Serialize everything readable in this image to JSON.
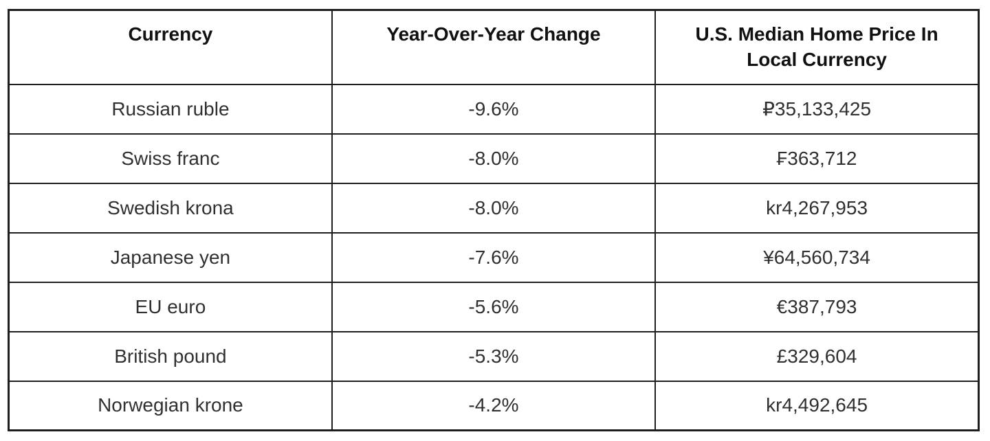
{
  "chart_data": {
    "type": "table",
    "columns": [
      "Currency",
      "Year-Over-Year Change",
      "U.S. Median Home Price In Local Currency"
    ],
    "rows": [
      [
        "Russian ruble",
        "-9.6%",
        "₽35,133,425"
      ],
      [
        "Swiss franc",
        "-8.0%",
        "₣363,712"
      ],
      [
        "Swedish krona",
        "-8.0%",
        "kr4,267,953"
      ],
      [
        "Japanese yen",
        "-7.6%",
        "¥64,560,734"
      ],
      [
        "EU euro",
        "-5.6%",
        "€387,793"
      ],
      [
        "British pound",
        "-5.3%",
        "£329,604"
      ],
      [
        "Norwegian krone",
        "-4.2%",
        "kr4,492,645"
      ]
    ],
    "yoy_change_pct": [
      -9.6,
      -8.0,
      -8.0,
      -7.6,
      -5.6,
      -5.3,
      -4.2
    ],
    "price_in_local_currency": [
      35133425,
      363712,
      4267953,
      64560734,
      387793,
      329604,
      4492645
    ],
    "currency_symbols": [
      "₽",
      "₣",
      "kr",
      "¥",
      "€",
      "£",
      "kr"
    ],
    "layout": {
      "grid": "full-borders",
      "header_alignment": "top-center",
      "cell_alignment": "middle-center"
    },
    "colors": {
      "background": "#ffffff",
      "border": "#1e1e1e",
      "header_text": "#111111",
      "body_text": "#303030"
    }
  }
}
